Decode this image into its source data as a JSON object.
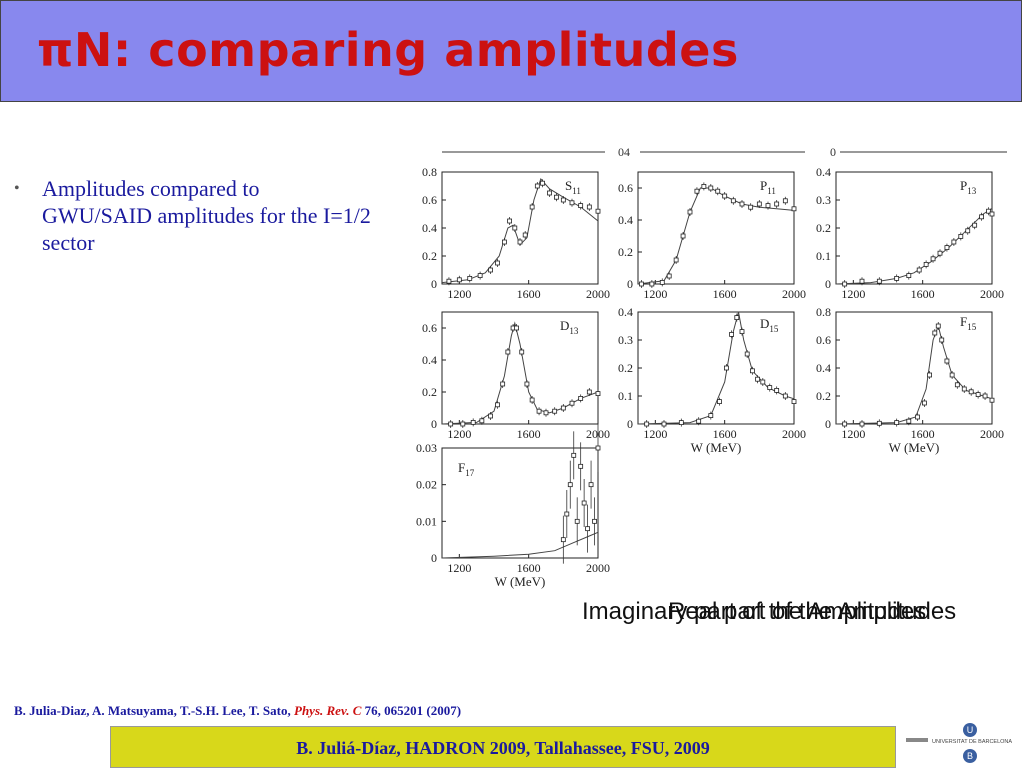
{
  "title": "πN: comparing amplitudes",
  "bullet": "Amplitudes compared to GWU/SAID amplitudes for the I=1/2 sector",
  "top_stray_labels": [
    "04",
    "0"
  ],
  "xlabel": "W (MeV)",
  "caption_imaginary": "Imaginary part of the Amplitudes",
  "caption_real": "Real part of the Amplitudes",
  "reference": {
    "authors": "B. Julia-Diaz, A. Matsuyama, T.-S.H. Lee, T. Sato, ",
    "journal": "Phys. Rev. C",
    "tail": " 76, 065201 (2007)"
  },
  "footer": "B. Juliá-Díaz, HADRON 2009, Tallahassee, FSU, 2009",
  "logo": {
    "text_left": "UNIVERSITAT DE BARCELONA",
    "letter_top": "U",
    "letter_bottom": "B"
  },
  "colors": {
    "title_bar": "#8888ee",
    "title_text": "#cc1111",
    "body_text": "#1a1a9e",
    "footer_bg": "#d8d81a"
  },
  "chart_data": [
    {
      "type": "scatter",
      "label": "S11",
      "xlim": [
        1100,
        2000
      ],
      "ylim": [
        0,
        0.8
      ],
      "xticks": [
        "1200",
        "1600",
        "2000"
      ],
      "yticks": [
        "0",
        "0.2",
        "0.4",
        "0.6",
        "0.8"
      ],
      "points": [
        [
          1140,
          0.02
        ],
        [
          1200,
          0.03
        ],
        [
          1260,
          0.04
        ],
        [
          1320,
          0.06
        ],
        [
          1380,
          0.1
        ],
        [
          1420,
          0.15
        ],
        [
          1460,
          0.3
        ],
        [
          1490,
          0.45
        ],
        [
          1520,
          0.4
        ],
        [
          1550,
          0.3
        ],
        [
          1580,
          0.35
        ],
        [
          1620,
          0.55
        ],
        [
          1650,
          0.7
        ],
        [
          1680,
          0.72
        ],
        [
          1720,
          0.65
        ],
        [
          1760,
          0.62
        ],
        [
          1800,
          0.6
        ],
        [
          1850,
          0.58
        ],
        [
          1900,
          0.56
        ],
        [
          1950,
          0.55
        ],
        [
          2000,
          0.52
        ]
      ],
      "curve": [
        [
          1100,
          0.01
        ],
        [
          1250,
          0.03
        ],
        [
          1350,
          0.08
        ],
        [
          1430,
          0.2
        ],
        [
          1480,
          0.4
        ],
        [
          1510,
          0.42
        ],
        [
          1550,
          0.28
        ],
        [
          1590,
          0.33
        ],
        [
          1630,
          0.6
        ],
        [
          1670,
          0.75
        ],
        [
          1720,
          0.68
        ],
        [
          1800,
          0.62
        ],
        [
          1900,
          0.55
        ],
        [
          2000,
          0.45
        ]
      ]
    },
    {
      "type": "scatter",
      "label": "P11",
      "xlim": [
        1100,
        2000
      ],
      "ylim": [
        0,
        0.7
      ],
      "xticks": [
        "1200",
        "1600",
        "2000"
      ],
      "yticks": [
        "0",
        "0.2",
        "0.4",
        "0.6"
      ],
      "points": [
        [
          1120,
          0
        ],
        [
          1180,
          0
        ],
        [
          1240,
          0.01
        ],
        [
          1280,
          0.05
        ],
        [
          1320,
          0.15
        ],
        [
          1360,
          0.3
        ],
        [
          1400,
          0.45
        ],
        [
          1440,
          0.58
        ],
        [
          1480,
          0.61
        ],
        [
          1520,
          0.6
        ],
        [
          1560,
          0.58
        ],
        [
          1600,
          0.55
        ],
        [
          1650,
          0.52
        ],
        [
          1700,
          0.5
        ],
        [
          1750,
          0.48
        ],
        [
          1800,
          0.5
        ],
        [
          1850,
          0.49
        ],
        [
          1900,
          0.5
        ],
        [
          1950,
          0.52
        ],
        [
          2000,
          0.47
        ]
      ],
      "curve": [
        [
          1100,
          0
        ],
        [
          1250,
          0.02
        ],
        [
          1320,
          0.15
        ],
        [
          1400,
          0.45
        ],
        [
          1460,
          0.6
        ],
        [
          1520,
          0.6
        ],
        [
          1600,
          0.55
        ],
        [
          1700,
          0.5
        ],
        [
          1800,
          0.48
        ],
        [
          1900,
          0.47
        ],
        [
          2000,
          0.46
        ]
      ]
    },
    {
      "type": "scatter",
      "label": "P13",
      "xlim": [
        1100,
        2000
      ],
      "ylim": [
        0,
        0.4
      ],
      "xticks": [
        "1200",
        "1600",
        "2000"
      ],
      "yticks": [
        "0",
        "0.1",
        "0.2",
        "0.3",
        "0.4"
      ],
      "points": [
        [
          1150,
          0.0
        ],
        [
          1250,
          0.01
        ],
        [
          1350,
          0.01
        ],
        [
          1450,
          0.02
        ],
        [
          1520,
          0.03
        ],
        [
          1580,
          0.05
        ],
        [
          1620,
          0.07
        ],
        [
          1660,
          0.09
        ],
        [
          1700,
          0.11
        ],
        [
          1740,
          0.13
        ],
        [
          1780,
          0.15
        ],
        [
          1820,
          0.17
        ],
        [
          1860,
          0.19
        ],
        [
          1900,
          0.21
        ],
        [
          1940,
          0.24
        ],
        [
          1980,
          0.26
        ],
        [
          2000,
          0.25
        ]
      ],
      "curve": [
        [
          1100,
          0
        ],
        [
          1300,
          0.005
        ],
        [
          1450,
          0.02
        ],
        [
          1550,
          0.04
        ],
        [
          1650,
          0.08
        ],
        [
          1750,
          0.13
        ],
        [
          1850,
          0.19
        ],
        [
          1950,
          0.25
        ],
        [
          2000,
          0.27
        ]
      ]
    },
    {
      "type": "scatter",
      "label": "D13",
      "xlim": [
        1100,
        2000
      ],
      "ylim": [
        0,
        0.7
      ],
      "xticks": [
        "1200",
        "1600",
        "2000"
      ],
      "yticks": [
        "0",
        "0.2",
        "0.4",
        "0.6"
      ],
      "points": [
        [
          1150,
          0
        ],
        [
          1220,
          0
        ],
        [
          1280,
          0.01
        ],
        [
          1330,
          0.02
        ],
        [
          1380,
          0.05
        ],
        [
          1420,
          0.12
        ],
        [
          1450,
          0.25
        ],
        [
          1480,
          0.45
        ],
        [
          1510,
          0.6
        ],
        [
          1530,
          0.6
        ],
        [
          1560,
          0.45
        ],
        [
          1590,
          0.25
        ],
        [
          1620,
          0.15
        ],
        [
          1660,
          0.08
        ],
        [
          1700,
          0.07
        ],
        [
          1750,
          0.08
        ],
        [
          1800,
          0.1
        ],
        [
          1850,
          0.13
        ],
        [
          1900,
          0.16
        ],
        [
          1950,
          0.2
        ],
        [
          2000,
          0.19
        ]
      ],
      "curve": [
        [
          1100,
          0
        ],
        [
          1300,
          0.01
        ],
        [
          1400,
          0.08
        ],
        [
          1460,
          0.3
        ],
        [
          1500,
          0.55
        ],
        [
          1520,
          0.63
        ],
        [
          1550,
          0.5
        ],
        [
          1600,
          0.2
        ],
        [
          1650,
          0.09
        ],
        [
          1720,
          0.07
        ],
        [
          1800,
          0.1
        ],
        [
          1900,
          0.16
        ],
        [
          2000,
          0.2
        ]
      ]
    },
    {
      "type": "scatter",
      "label": "D15",
      "xlim": [
        1100,
        2000
      ],
      "ylim": [
        0,
        0.4
      ],
      "xticks": [
        "1200",
        "1600",
        "2000"
      ],
      "yticks": [
        "0",
        "0.1",
        "0.2",
        "0.3",
        "0.4"
      ],
      "points": [
        [
          1150,
          0
        ],
        [
          1250,
          0
        ],
        [
          1350,
          0.005
        ],
        [
          1450,
          0.01
        ],
        [
          1520,
          0.03
        ],
        [
          1570,
          0.08
        ],
        [
          1610,
          0.2
        ],
        [
          1640,
          0.32
        ],
        [
          1670,
          0.38
        ],
        [
          1700,
          0.33
        ],
        [
          1730,
          0.25
        ],
        [
          1760,
          0.19
        ],
        [
          1790,
          0.16
        ],
        [
          1820,
          0.15
        ],
        [
          1860,
          0.13
        ],
        [
          1900,
          0.12
        ],
        [
          1950,
          0.1
        ],
        [
          2000,
          0.08
        ]
      ],
      "curve": [
        [
          1100,
          0
        ],
        [
          1400,
          0.005
        ],
        [
          1520,
          0.03
        ],
        [
          1600,
          0.15
        ],
        [
          1650,
          0.33
        ],
        [
          1680,
          0.4
        ],
        [
          1710,
          0.3
        ],
        [
          1760,
          0.19
        ],
        [
          1850,
          0.13
        ],
        [
          1950,
          0.1
        ],
        [
          2000,
          0.09
        ]
      ]
    },
    {
      "type": "scatter",
      "label": "F15",
      "xlim": [
        1100,
        2000
      ],
      "ylim": [
        0,
        0.8
      ],
      "xticks": [
        "1200",
        "1600",
        "2000"
      ],
      "yticks": [
        "0",
        "0.2",
        "0.4",
        "0.6",
        "0.8"
      ],
      "points": [
        [
          1150,
          0
        ],
        [
          1250,
          0
        ],
        [
          1350,
          0.005
        ],
        [
          1450,
          0.01
        ],
        [
          1520,
          0.02
        ],
        [
          1570,
          0.05
        ],
        [
          1610,
          0.15
        ],
        [
          1640,
          0.35
        ],
        [
          1670,
          0.65
        ],
        [
          1690,
          0.7
        ],
        [
          1710,
          0.6
        ],
        [
          1740,
          0.45
        ],
        [
          1770,
          0.35
        ],
        [
          1800,
          0.28
        ],
        [
          1840,
          0.25
        ],
        [
          1880,
          0.23
        ],
        [
          1920,
          0.21
        ],
        [
          1960,
          0.2
        ],
        [
          2000,
          0.17
        ]
      ],
      "curve": [
        [
          1100,
          0
        ],
        [
          1450,
          0.01
        ],
        [
          1560,
          0.05
        ],
        [
          1620,
          0.25
        ],
        [
          1660,
          0.6
        ],
        [
          1690,
          0.7
        ],
        [
          1720,
          0.55
        ],
        [
          1770,
          0.35
        ],
        [
          1850,
          0.24
        ],
        [
          1950,
          0.2
        ],
        [
          2000,
          0.18
        ]
      ]
    },
    {
      "type": "scatter",
      "label": "F17",
      "xlim": [
        1100,
        2000
      ],
      "ylim": [
        0,
        0.03
      ],
      "xticks": [
        "1200",
        "1600",
        "2000"
      ],
      "yticks": [
        "0",
        "0.01",
        "0.02",
        "0.03"
      ],
      "points": [
        [
          1800,
          0.005
        ],
        [
          1820,
          0.012
        ],
        [
          1840,
          0.02
        ],
        [
          1860,
          0.028
        ],
        [
          1880,
          0.01
        ],
        [
          1900,
          0.025
        ],
        [
          1920,
          0.015
        ],
        [
          1940,
          0.008
        ],
        [
          1960,
          0.02
        ],
        [
          1980,
          0.01
        ],
        [
          2000,
          0.03
        ]
      ],
      "curve": [
        [
          1100,
          0
        ],
        [
          1400,
          0.0005
        ],
        [
          1600,
          0.001
        ],
        [
          1750,
          0.002
        ],
        [
          1850,
          0.004
        ],
        [
          1950,
          0.006
        ],
        [
          2000,
          0.007
        ]
      ]
    }
  ]
}
